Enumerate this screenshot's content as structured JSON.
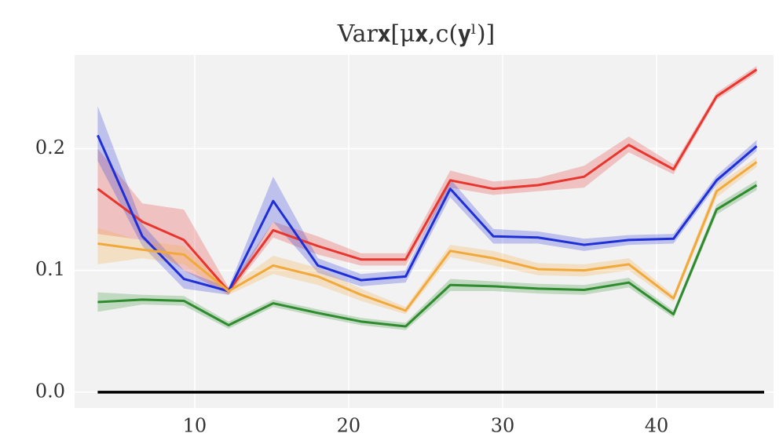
{
  "chart_data": {
    "type": "line",
    "title": "Var𝐱[μ𝐱,c(𝐲ˡ)]",
    "x": [
      3.7,
      6.6,
      9.3,
      12.2,
      15.1,
      18.0,
      20.8,
      23.7,
      26.6,
      29.4,
      32.3,
      35.3,
      38.2,
      41.1,
      43.9,
      46.5
    ],
    "series": [
      {
        "color": "#e8352e",
        "values": [
          0.167,
          0.14,
          0.125,
          0.083,
          0.133,
          0.12,
          0.109,
          0.109,
          0.174,
          0.167,
          0.17,
          0.177,
          0.203,
          0.183,
          0.243,
          0.265
        ],
        "lower": [
          0.13,
          0.125,
          0.1,
          0.08,
          0.127,
          0.113,
          0.104,
          0.104,
          0.168,
          0.162,
          0.165,
          0.168,
          0.197,
          0.179,
          0.24,
          0.262
        ],
        "upper": [
          0.2,
          0.155,
          0.15,
          0.086,
          0.14,
          0.128,
          0.114,
          0.114,
          0.182,
          0.173,
          0.176,
          0.186,
          0.21,
          0.187,
          0.246,
          0.268
        ]
      },
      {
        "color": "#1f2fd8",
        "values": [
          0.211,
          0.128,
          0.093,
          0.083,
          0.157,
          0.104,
          0.092,
          0.095,
          0.167,
          0.128,
          0.127,
          0.121,
          0.125,
          0.126,
          0.174,
          0.202
        ],
        "lower": [
          0.19,
          0.12,
          0.085,
          0.08,
          0.14,
          0.098,
          0.087,
          0.09,
          0.16,
          0.122,
          0.122,
          0.116,
          0.121,
          0.122,
          0.17,
          0.198
        ],
        "upper": [
          0.235,
          0.138,
          0.1,
          0.086,
          0.177,
          0.11,
          0.097,
          0.1,
          0.175,
          0.134,
          0.132,
          0.126,
          0.129,
          0.13,
          0.178,
          0.207
        ]
      },
      {
        "color": "#f2a93b",
        "values": [
          0.122,
          0.117,
          0.113,
          0.083,
          0.104,
          0.095,
          0.08,
          0.067,
          0.116,
          0.11,
          0.101,
          0.1,
          0.105,
          0.077,
          0.165,
          0.189
        ],
        "lower": [
          0.105,
          0.11,
          0.105,
          0.08,
          0.097,
          0.088,
          0.075,
          0.064,
          0.111,
          0.104,
          0.096,
          0.095,
          0.1,
          0.074,
          0.16,
          0.185
        ],
        "upper": [
          0.135,
          0.124,
          0.12,
          0.086,
          0.112,
          0.102,
          0.085,
          0.07,
          0.121,
          0.116,
          0.106,
          0.105,
          0.11,
          0.08,
          0.17,
          0.193
        ]
      },
      {
        "color": "#2e8b2e",
        "values": [
          0.074,
          0.076,
          0.075,
          0.055,
          0.073,
          0.065,
          0.058,
          0.054,
          0.088,
          0.087,
          0.085,
          0.084,
          0.09,
          0.064,
          0.15,
          0.17
        ],
        "lower": [
          0.066,
          0.072,
          0.071,
          0.052,
          0.07,
          0.062,
          0.055,
          0.051,
          0.083,
          0.083,
          0.081,
          0.08,
          0.086,
          0.061,
          0.146,
          0.166
        ],
        "upper": [
          0.082,
          0.08,
          0.079,
          0.058,
          0.076,
          0.068,
          0.061,
          0.057,
          0.093,
          0.091,
          0.089,
          0.088,
          0.094,
          0.067,
          0.154,
          0.174
        ]
      }
    ],
    "hline": 0,
    "xlim": [
      2.2,
      47.6
    ],
    "ylim": [
      -0.013,
      0.277
    ],
    "xticks": [
      10,
      20,
      30,
      40
    ],
    "yticks": [
      {
        "value": 0,
        "label": "0.0"
      },
      {
        "value": 0.1,
        "label": "0.1"
      },
      {
        "value": 0.2,
        "label": "0.2"
      }
    ],
    "grid": true
  }
}
